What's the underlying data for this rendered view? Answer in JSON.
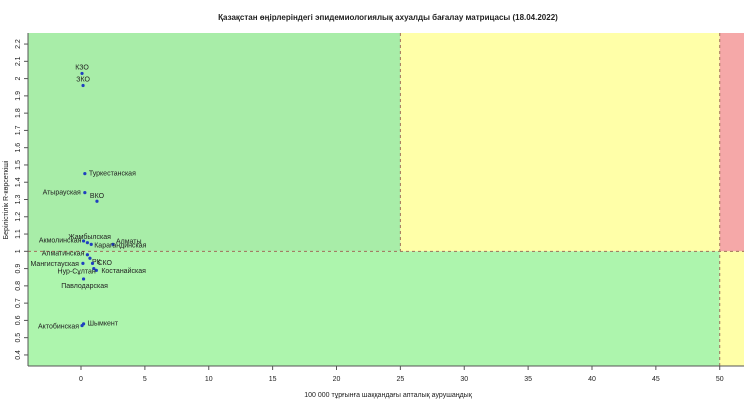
{
  "chart_data": {
    "type": "scatter",
    "title": "Қазақстан өңірлеріндегі эпидемиологиялық ахуалды бағалау матрицасы  (18.04.2022)",
    "x_label": "100 000 тұрғынға шаққандағы апталық аурушаңдық",
    "y_label": "Берілістілік R-көрсеткіші",
    "xlim": [
      -4.15,
      51.9
    ],
    "ylim": [
      0.336,
      2.264
    ],
    "xticks": [
      0,
      5,
      10,
      15,
      20,
      25,
      30,
      35,
      40,
      45,
      50
    ],
    "yticks": [
      0.4,
      0.5,
      0.6,
      0.7,
      0.8,
      0.9,
      1.0,
      1.1,
      1.2,
      1.3,
      1.4,
      1.5,
      1.6,
      1.7,
      1.8,
      1.9,
      2.0,
      2.1,
      2.2
    ],
    "thresholds": {
      "x": [
        25,
        50
      ],
      "y": 1.0
    },
    "color": "#1f3fbf",
    "points": [
      {
        "name": "КЗО",
        "x": 0.08,
        "y": 2.03
      },
      {
        "name": "ЗКО",
        "x": 0.16,
        "y": 1.96
      },
      {
        "name": "Туркестанская",
        "x": 0.3,
        "y": 1.45
      },
      {
        "name": "Атырауская",
        "x": 0.3,
        "y": 1.34
      },
      {
        "name": "ВКО",
        "x": 1.25,
        "y": 1.29
      },
      {
        "name": "Жамбылская",
        "x": 0.2,
        "y": 1.06
      },
      {
        "name": "Акмолинская",
        "x": 0.5,
        "y": 1.05
      },
      {
        "name": "Алматы",
        "x": 2.5,
        "y": 1.04
      },
      {
        "name": "Карагандинская",
        "x": 0.8,
        "y": 1.04
      },
      {
        "name": "Алматинская",
        "x": 0.5,
        "y": 0.98
      },
      {
        "name": "РК",
        "x": 0.7,
        "y": 0.96
      },
      {
        "name": "Мангистауская",
        "x": 0.15,
        "y": 0.93
      },
      {
        "name": "СКО",
        "x": 0.9,
        "y": 0.93
      },
      {
        "name": "Костанайская",
        "x": 1.2,
        "y": 0.89
      },
      {
        "name": "Нур-Сұлтан",
        "x": 1.0,
        "y": 0.9
      },
      {
        "name": "Павлодарская",
        "x": 0.2,
        "y": 0.84
      },
      {
        "name": "Шымкент",
        "x": 0.2,
        "y": 0.58
      },
      {
        "name": "Актобинская",
        "x": 0.08,
        "y": 0.57
      }
    ]
  }
}
